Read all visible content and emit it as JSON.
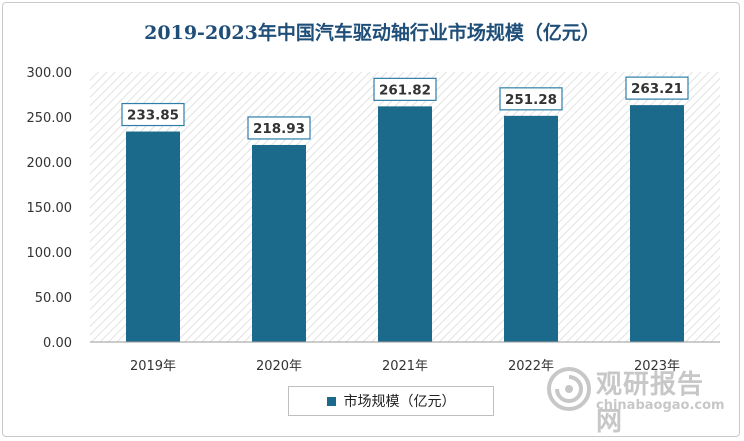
{
  "chart_data": {
    "type": "bar",
    "title": "2019-2023年中国汽车驱动轴行业市场规模（亿元）",
    "categories": [
      "2019年",
      "2020年",
      "2021年",
      "2022年",
      "2023年"
    ],
    "series": [
      {
        "name": "市场规模（亿元）",
        "values": [
          233.85,
          218.93,
          261.82,
          251.28,
          263.21
        ]
      }
    ],
    "data_labels": [
      "233.85",
      "218.93",
      "261.82",
      "251.28",
      "263.21"
    ],
    "y_ticks": [
      "0.00",
      "50.00",
      "100.00",
      "150.00",
      "200.00",
      "250.00",
      "300.00"
    ],
    "ylim": [
      0,
      300
    ],
    "bar_color": "#1b6a8c",
    "label_border_color": "#2e7fa8",
    "title_color": "#1f4e79",
    "legend_position": "bottom"
  },
  "watermark": {
    "logo_icon": "spiral-logo-icon",
    "name_cn": "观研报告网",
    "name_en": "chinabaogao.com"
  }
}
